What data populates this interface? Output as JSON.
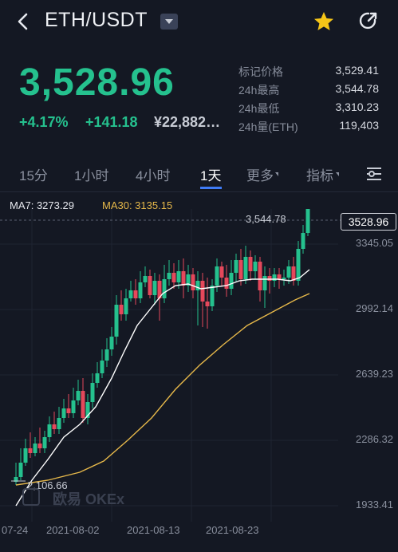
{
  "header": {
    "pair": "ETH/USDT"
  },
  "ticker": {
    "price": "3,528.96",
    "change_pct": "+4.17%",
    "change_abs": "+141.18",
    "cny_value": "¥22,882…"
  },
  "stats": [
    {
      "label": "标记价格",
      "value": "3,529.41"
    },
    {
      "label": "24h最高",
      "value": "3,544.78"
    },
    {
      "label": "24h最低",
      "value": "3,310.23"
    },
    {
      "label": "24h量(ETH)",
      "value": "119,403"
    }
  ],
  "tabs": [
    {
      "label": "15分"
    },
    {
      "label": "1小时"
    },
    {
      "label": "4小时"
    },
    {
      "label": "1天"
    },
    {
      "label": "更多"
    },
    {
      "label": "指标"
    }
  ],
  "indicators": {
    "ma7": "MA7: 3273.29",
    "ma30": "MA30: 3135.15"
  },
  "chart": {
    "y_labels": [
      "3345.05",
      "2992.14",
      "2639.23",
      "2286.32",
      "1933.41"
    ],
    "current_price": "3528.96",
    "high_marker": "3,544.78",
    "low_marker": "2,106.66",
    "watermark": "欧易 OKEx",
    "x_labels": [
      "07-24",
      "2021-08-02",
      "2021-08-13",
      "2021-08-23"
    ]
  },
  "colors": {
    "up": "#25c18e",
    "down": "#e5485b",
    "ma7": "#ffffff",
    "ma30": "#e6b84a",
    "accent": "#3f7bf6"
  }
}
